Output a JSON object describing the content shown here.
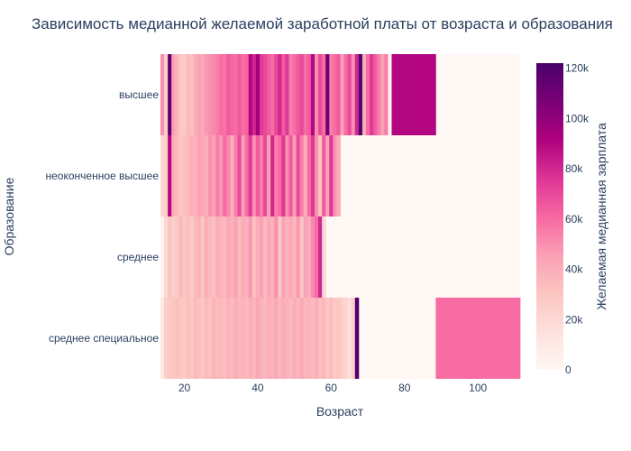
{
  "chart_data": {
    "type": "heatmap",
    "title": "Зависимость медианной желаемой заработной платы от возраста и образования",
    "xlabel": "Возраст",
    "ylabel": "Образование",
    "colorbar_title": "Желаемая медианная зарплата",
    "x_ticks": [
      20,
      40,
      60,
      80,
      100
    ],
    "x_tick_labels": [
      "20",
      "40",
      "60",
      "80",
      "100"
    ],
    "x_range": [
      14,
      112
    ],
    "z_range": [
      0,
      122000
    ],
    "colorbar_ticks": [
      0,
      20000,
      40000,
      60000,
      80000,
      100000,
      120000
    ],
    "colorbar_tick_labels": [
      "0",
      "20k",
      "40k",
      "60k",
      "80k",
      "100k",
      "120k"
    ],
    "colorscale": [
      [
        0.0,
        "#fff7f3"
      ],
      [
        0.125,
        "#fde0dd"
      ],
      [
        0.25,
        "#fcc5c0"
      ],
      [
        0.375,
        "#fa9fb5"
      ],
      [
        0.5,
        "#f768a1"
      ],
      [
        0.625,
        "#dd3497"
      ],
      [
        0.75,
        "#ae017e"
      ],
      [
        0.875,
        "#7a0177"
      ],
      [
        1.0,
        "#49006a"
      ]
    ],
    "categories": [
      "высшее",
      "неоконченное высшее",
      "среднее",
      "среднее специальное"
    ],
    "series": [
      {
        "name": "высшее",
        "values": [
          [
            14,
            50000
          ],
          [
            15,
            25000
          ],
          [
            16,
            115000
          ],
          [
            17,
            45000
          ],
          [
            18,
            38000
          ],
          [
            19,
            30000
          ],
          [
            20,
            28000
          ],
          [
            21,
            35000
          ],
          [
            22,
            32000
          ],
          [
            23,
            40000
          ],
          [
            24,
            45000
          ],
          [
            25,
            42000
          ],
          [
            26,
            48000
          ],
          [
            27,
            50000
          ],
          [
            28,
            52000
          ],
          [
            29,
            55000
          ],
          [
            30,
            60000
          ],
          [
            31,
            58000
          ],
          [
            32,
            65000
          ],
          [
            33,
            62000
          ],
          [
            34,
            60000
          ],
          [
            35,
            65000
          ],
          [
            36,
            60000
          ],
          [
            37,
            62000
          ],
          [
            38,
            90000
          ],
          [
            39,
            80000
          ],
          [
            40,
            95000
          ],
          [
            41,
            75000
          ],
          [
            42,
            70000
          ],
          [
            43,
            65000
          ],
          [
            44,
            60000
          ],
          [
            45,
            70000
          ],
          [
            46,
            80000
          ],
          [
            47,
            65000
          ],
          [
            48,
            75000
          ],
          [
            49,
            55000
          ],
          [
            50,
            60000
          ],
          [
            51,
            65000
          ],
          [
            52,
            70000
          ],
          [
            53,
            60000
          ],
          [
            54,
            65000
          ],
          [
            55,
            90000
          ],
          [
            56,
            50000
          ],
          [
            57,
            70000
          ],
          [
            58,
            60000
          ],
          [
            59,
            110000
          ],
          [
            60,
            55000
          ],
          [
            61,
            60000
          ],
          [
            62,
            65000
          ],
          [
            63,
            45000
          ],
          [
            64,
            60000
          ],
          [
            65,
            70000
          ],
          [
            66,
            50000
          ],
          [
            67,
            80000
          ],
          [
            68,
            120000
          ],
          [
            69,
            40000
          ],
          [
            70,
            60000
          ],
          [
            71,
            75000
          ],
          [
            72,
            65000
          ],
          [
            73,
            55000
          ],
          [
            74,
            45000
          ],
          [
            75,
            55000
          ],
          [
            76,
            2000
          ],
          [
            77,
            90000
          ],
          [
            78,
            90000
          ],
          [
            79,
            90000
          ],
          [
            80,
            90000
          ],
          [
            81,
            90000
          ],
          [
            82,
            90000
          ],
          [
            83,
            90000
          ],
          [
            84,
            90000
          ],
          [
            85,
            90000
          ],
          [
            86,
            90000
          ],
          [
            87,
            90000
          ],
          [
            88,
            90000
          ]
        ]
      },
      {
        "name": "неоконченное высшее",
        "values": [
          [
            14,
            20000
          ],
          [
            15,
            25000
          ],
          [
            16,
            90000
          ],
          [
            17,
            40000
          ],
          [
            18,
            35000
          ],
          [
            19,
            30000
          ],
          [
            20,
            32000
          ],
          [
            21,
            35000
          ],
          [
            22,
            40000
          ],
          [
            23,
            38000
          ],
          [
            24,
            45000
          ],
          [
            25,
            42000
          ],
          [
            26,
            40000
          ],
          [
            27,
            50000
          ],
          [
            28,
            45000
          ],
          [
            29,
            55000
          ],
          [
            30,
            48000
          ],
          [
            31,
            60000
          ],
          [
            32,
            52000
          ],
          [
            33,
            40000
          ],
          [
            34,
            55000
          ],
          [
            35,
            70000
          ],
          [
            36,
            45000
          ],
          [
            37,
            60000
          ],
          [
            38,
            75000
          ],
          [
            39,
            50000
          ],
          [
            40,
            65000
          ],
          [
            41,
            55000
          ],
          [
            42,
            70000
          ],
          [
            43,
            45000
          ],
          [
            44,
            80000
          ],
          [
            45,
            55000
          ],
          [
            46,
            60000
          ],
          [
            47,
            75000
          ],
          [
            48,
            50000
          ],
          [
            49,
            65000
          ],
          [
            50,
            45000
          ],
          [
            51,
            70000
          ],
          [
            52,
            55000
          ],
          [
            53,
            40000
          ],
          [
            54,
            60000
          ],
          [
            55,
            75000
          ],
          [
            56,
            50000
          ],
          [
            57,
            30000
          ],
          [
            58,
            65000
          ],
          [
            59,
            45000
          ],
          [
            60,
            75000
          ],
          [
            61,
            50000
          ],
          [
            62,
            40000
          ]
        ]
      },
      {
        "name": "среднее",
        "values": [
          [
            14,
            3000
          ],
          [
            15,
            20000
          ],
          [
            16,
            30000
          ],
          [
            17,
            25000
          ],
          [
            18,
            28000
          ],
          [
            19,
            35000
          ],
          [
            20,
            30000
          ],
          [
            21,
            32000
          ],
          [
            22,
            28000
          ],
          [
            23,
            35000
          ],
          [
            24,
            38000
          ],
          [
            25,
            30000
          ],
          [
            26,
            40000
          ],
          [
            27,
            35000
          ],
          [
            28,
            32000
          ],
          [
            29,
            40000
          ],
          [
            30,
            38000
          ],
          [
            31,
            35000
          ],
          [
            32,
            42000
          ],
          [
            33,
            38000
          ],
          [
            34,
            45000
          ],
          [
            35,
            35000
          ],
          [
            36,
            40000
          ],
          [
            37,
            38000
          ],
          [
            38,
            48000
          ],
          [
            39,
            32000
          ],
          [
            40,
            40000
          ],
          [
            41,
            45000
          ],
          [
            42,
            35000
          ],
          [
            43,
            42000
          ],
          [
            44,
            38000
          ],
          [
            45,
            50000
          ],
          [
            46,
            30000
          ],
          [
            47,
            45000
          ],
          [
            48,
            38000
          ],
          [
            49,
            42000
          ],
          [
            50,
            36000
          ],
          [
            51,
            48000
          ],
          [
            52,
            30000
          ],
          [
            53,
            45000
          ],
          [
            54,
            40000
          ],
          [
            55,
            52000
          ],
          [
            56,
            60000
          ],
          [
            57,
            80000
          ],
          [
            58,
            20000
          ]
        ]
      },
      {
        "name": "среднее специальное",
        "values": [
          [
            14,
            10000
          ],
          [
            15,
            25000
          ],
          [
            16,
            28000
          ],
          [
            17,
            30000
          ],
          [
            18,
            32000
          ],
          [
            19,
            30000
          ],
          [
            20,
            28000
          ],
          [
            21,
            32000
          ],
          [
            22,
            30000
          ],
          [
            23,
            35000
          ],
          [
            24,
            33000
          ],
          [
            25,
            30000
          ],
          [
            26,
            35000
          ],
          [
            27,
            32000
          ],
          [
            28,
            38000
          ],
          [
            29,
            34000
          ],
          [
            30,
            36000
          ],
          [
            31,
            33000
          ],
          [
            32,
            38000
          ],
          [
            33,
            35000
          ],
          [
            34,
            40000
          ],
          [
            35,
            36000
          ],
          [
            36,
            38000
          ],
          [
            37,
            35000
          ],
          [
            38,
            40000
          ],
          [
            39,
            37000
          ],
          [
            40,
            42000
          ],
          [
            41,
            38000
          ],
          [
            42,
            36000
          ],
          [
            43,
            40000
          ],
          [
            44,
            38000
          ],
          [
            45,
            42000
          ],
          [
            46,
            36000
          ],
          [
            47,
            40000
          ],
          [
            48,
            38000
          ],
          [
            49,
            35000
          ],
          [
            50,
            40000
          ],
          [
            51,
            37000
          ],
          [
            52,
            42000
          ],
          [
            53,
            36000
          ],
          [
            54,
            38000
          ],
          [
            55,
            35000
          ],
          [
            56,
            40000
          ],
          [
            57,
            33000
          ],
          [
            58,
            36000
          ],
          [
            59,
            30000
          ],
          [
            60,
            34000
          ],
          [
            61,
            28000
          ],
          [
            62,
            30000
          ],
          [
            63,
            25000
          ],
          [
            64,
            22000
          ],
          [
            65,
            15000
          ],
          [
            66,
            25000
          ],
          [
            67,
            120000
          ],
          [
            89,
            60000
          ],
          [
            90,
            60000
          ],
          [
            91,
            60000
          ],
          [
            92,
            60000
          ],
          [
            93,
            60000
          ],
          [
            94,
            60000
          ],
          [
            95,
            60000
          ],
          [
            96,
            60000
          ],
          [
            97,
            60000
          ],
          [
            98,
            60000
          ],
          [
            99,
            60000
          ],
          [
            100,
            60000
          ],
          [
            101,
            60000
          ],
          [
            102,
            60000
          ],
          [
            103,
            60000
          ],
          [
            104,
            60000
          ],
          [
            105,
            60000
          ],
          [
            106,
            60000
          ],
          [
            107,
            60000
          ],
          [
            108,
            60000
          ],
          [
            109,
            60000
          ],
          [
            110,
            60000
          ],
          [
            111,
            60000
          ]
        ]
      }
    ]
  }
}
